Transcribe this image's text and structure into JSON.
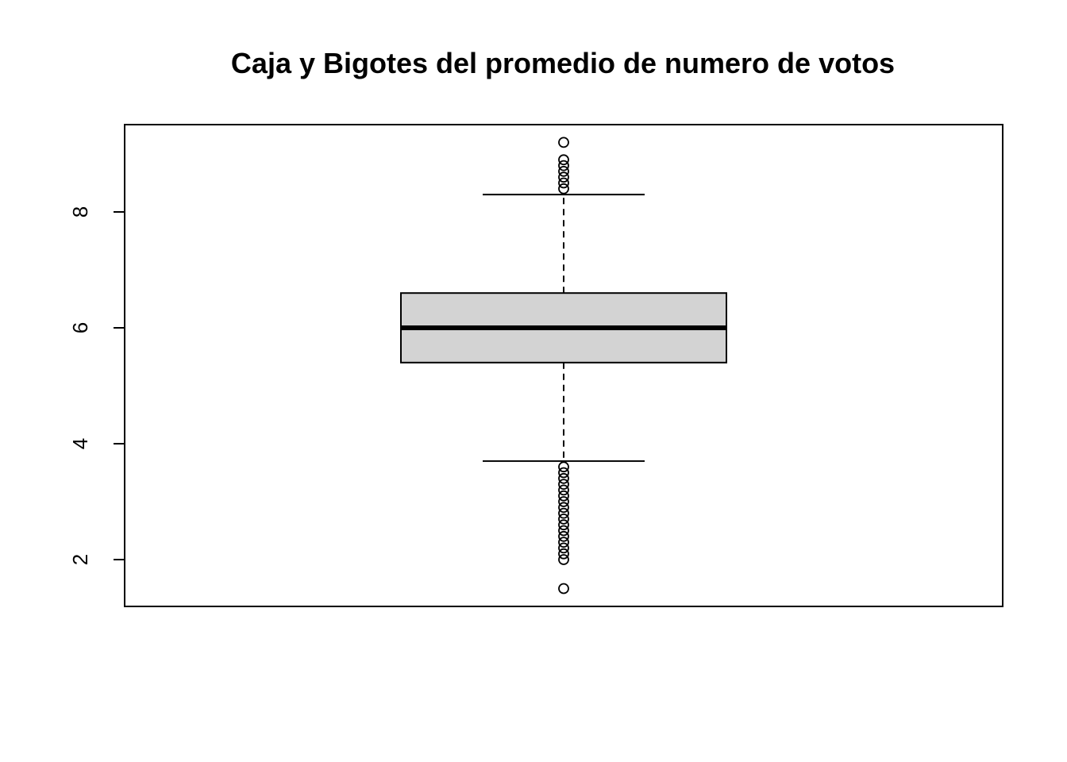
{
  "chart_data": {
    "type": "boxplot",
    "title": "Caja y Bigotes del promedio de numero de votos",
    "xlabel": "",
    "ylabel": "",
    "ylim": [
      1.4,
      9.5
    ],
    "y_ticks": [
      2,
      4,
      6,
      8
    ],
    "y_tick_labels": [
      "2",
      "4",
      "6",
      "8"
    ],
    "grid": false,
    "legend": "none",
    "box": {
      "q1": 5.4,
      "median": 6.0,
      "q3": 6.6,
      "whisker_low": 3.7,
      "whisker_high": 8.3,
      "fill": "#d3d3d3"
    },
    "outliers_high": [
      8.4,
      8.5,
      8.6,
      8.7,
      8.8,
      8.9,
      9.2
    ],
    "outliers_low": [
      1.5,
      2.0,
      2.1,
      2.2,
      2.3,
      2.4,
      2.5,
      2.6,
      2.7,
      2.8,
      2.9,
      3.0,
      3.1,
      3.2,
      3.3,
      3.4,
      3.5,
      3.6
    ]
  }
}
